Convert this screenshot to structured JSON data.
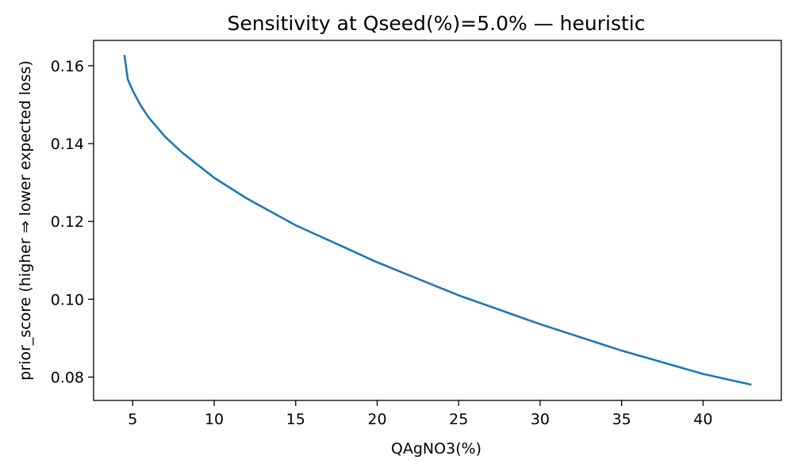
{
  "chart_data": {
    "type": "line",
    "title": "Sensitivity at Qseed(%)=5.0% — heuristic",
    "xlabel": "QAgNO3(%)",
    "ylabel": "prior_score (higher ⇒ lower expected loss)",
    "xlim": [
      2.6,
      44.8
    ],
    "ylim": [
      0.074,
      0.1665
    ],
    "xticks": [
      5,
      10,
      15,
      20,
      25,
      30,
      35,
      40
    ],
    "yticks": [
      0.08,
      0.1,
      0.12,
      0.14,
      0.16
    ],
    "ytick_labels": [
      "0.08",
      "0.10",
      "0.12",
      "0.14",
      "0.16"
    ],
    "grid": false,
    "series": [
      {
        "color": "#1f77b4",
        "x": [
          4.5,
          4.7,
          5,
          5.5,
          6,
          7,
          8,
          10,
          12,
          15,
          18,
          20,
          25,
          30,
          35,
          40,
          42.9
        ],
        "y": [
          0.1625,
          0.1565,
          0.1536,
          0.1497,
          0.1466,
          0.1417,
          0.1378,
          0.1312,
          0.1259,
          0.119,
          0.1133,
          0.1095,
          0.101,
          0.0936,
          0.0868,
          0.0808,
          0.0781
        ]
      }
    ]
  }
}
